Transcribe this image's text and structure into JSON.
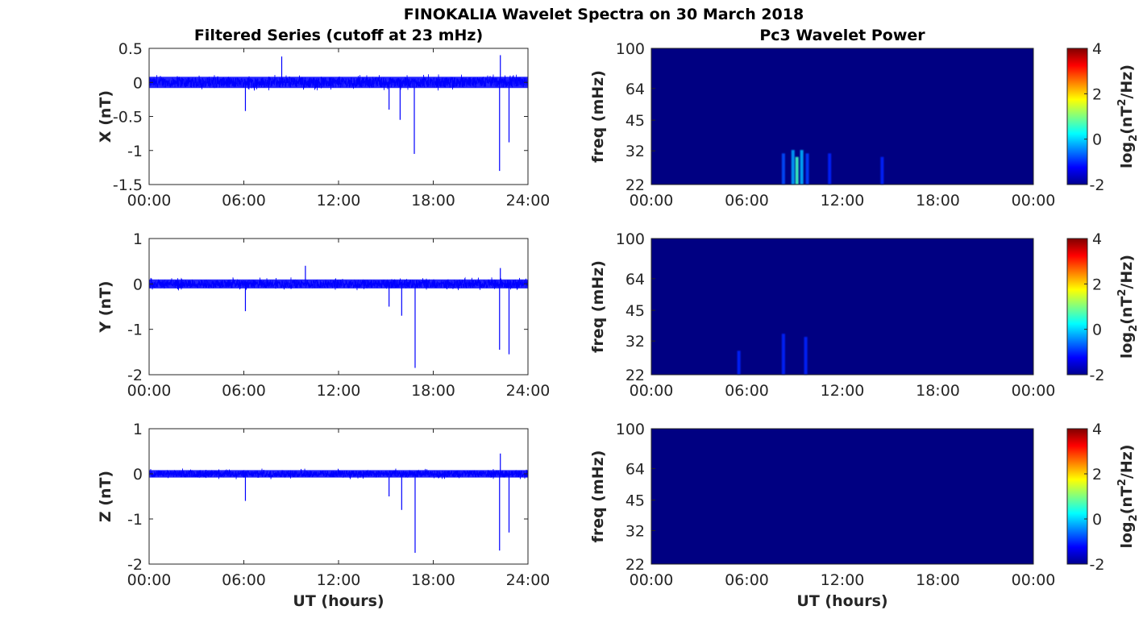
{
  "figure": {
    "title": "FINOKALIA Wavelet Spectra on 30 March 2018",
    "left_column_title": "Filtered Series (cutoff at 23 mHz)",
    "right_column_title": "Pc3 Wavelet Power",
    "xlabel": "UT (hours)"
  },
  "colors": {
    "trace": "#0000ff",
    "background_power": "#000082",
    "axis": "#262626",
    "colormap": "jet"
  },
  "chart_data": [
    {
      "type": "line",
      "component": "X",
      "ylabel": "X (nT)",
      "xlim": [
        0,
        24
      ],
      "ylim": [
        -1.5,
        0.5
      ],
      "yticks": [
        0.5,
        0,
        -0.5,
        -1,
        -1.5
      ],
      "ytick_labels": [
        "0.5",
        "0",
        "-0.5",
        "-1",
        "-1.5"
      ],
      "xticks": [
        0,
        6,
        12,
        18,
        24
      ],
      "xtick_labels": [
        "00:00",
        "06:00",
        "12:00",
        "18:00",
        "24:00"
      ],
      "noise_band": [
        -0.15,
        0.15
      ],
      "spikes": [
        {
          "x": 6.1,
          "y": -0.42
        },
        {
          "x": 8.4,
          "y": 0.38
        },
        {
          "x": 15.2,
          "y": -0.4
        },
        {
          "x": 15.9,
          "y": -0.55
        },
        {
          "x": 16.8,
          "y": -1.05
        },
        {
          "x": 22.2,
          "y": -1.3
        },
        {
          "x": 22.25,
          "y": 0.4
        },
        {
          "x": 22.8,
          "y": -0.88
        }
      ]
    },
    {
      "type": "heatmap",
      "component": "X",
      "ylabel": "freq (mHz)",
      "yscale": "log",
      "ylim": [
        22,
        100
      ],
      "yticks": [
        100,
        64,
        45,
        32,
        22
      ],
      "ytick_labels": [
        "100",
        "64",
        "45",
        "32",
        "22"
      ],
      "xlim": [
        0,
        24
      ],
      "xtick_labels": [
        "00:00",
        "06:00",
        "12:00",
        "18:00",
        "00:00"
      ],
      "colorbar": {
        "label": "log2(nT^2/Hz)",
        "range": [
          -2,
          4
        ],
        "ticks": [
          "4",
          "2",
          "0",
          "-2"
        ]
      },
      "hotspots": [
        {
          "x": 8.3,
          "f": 26,
          "level": -0.8
        },
        {
          "x": 8.9,
          "f": 27,
          "level": -0.3
        },
        {
          "x": 9.15,
          "f": 25,
          "level": 0.6
        },
        {
          "x": 9.45,
          "f": 27,
          "level": -0.2
        },
        {
          "x": 9.8,
          "f": 26,
          "level": -0.9
        },
        {
          "x": 11.2,
          "f": 26,
          "level": -1.4
        },
        {
          "x": 14.5,
          "f": 25,
          "level": -1.5
        }
      ]
    },
    {
      "type": "line",
      "component": "Y",
      "ylabel": "Y (nT)",
      "xlim": [
        0,
        24
      ],
      "ylim": [
        -2,
        1
      ],
      "yticks": [
        1,
        0,
        -1,
        -2
      ],
      "ytick_labels": [
        "1",
        "0",
        "-1",
        "-2"
      ],
      "xticks": [
        0,
        6,
        12,
        18,
        24
      ],
      "xtick_labels": [
        "00:00",
        "06:00",
        "12:00",
        "18:00",
        "24:00"
      ],
      "noise_band": [
        -0.18,
        0.18
      ],
      "spikes": [
        {
          "x": 6.1,
          "y": -0.6
        },
        {
          "x": 9.9,
          "y": 0.4
        },
        {
          "x": 15.2,
          "y": -0.5
        },
        {
          "x": 16.0,
          "y": -0.7
        },
        {
          "x": 16.85,
          "y": -1.85
        },
        {
          "x": 22.2,
          "y": -1.45
        },
        {
          "x": 22.25,
          "y": 0.35
        },
        {
          "x": 22.8,
          "y": -1.55
        }
      ]
    },
    {
      "type": "heatmap",
      "component": "Y",
      "ylabel": "freq (mHz)",
      "yscale": "log",
      "ylim": [
        22,
        100
      ],
      "yticks": [
        100,
        64,
        45,
        32,
        22
      ],
      "ytick_labels": [
        "100",
        "64",
        "45",
        "32",
        "22"
      ],
      "xlim": [
        0,
        24
      ],
      "xtick_labels": [
        "00:00",
        "06:00",
        "12:00",
        "18:00",
        "00:00"
      ],
      "colorbar": {
        "label": "log2(nT^2/Hz)",
        "range": [
          -2,
          4
        ],
        "ticks": [
          "4",
          "2",
          "0",
          "-2"
        ]
      },
      "hotspots": [
        {
          "x": 5.5,
          "f": 24,
          "level": -1.3
        },
        {
          "x": 8.3,
          "f": 29,
          "level": -1.6
        },
        {
          "x": 9.7,
          "f": 28,
          "level": -1.5
        }
      ]
    },
    {
      "type": "line",
      "component": "Z",
      "ylabel": "Z (nT)",
      "xlim": [
        0,
        24
      ],
      "ylim": [
        -2,
        1
      ],
      "yticks": [
        1,
        0,
        -1,
        -2
      ],
      "ytick_labels": [
        "1",
        "0",
        "-1",
        "-2"
      ],
      "xticks": [
        0,
        6,
        12,
        18,
        24
      ],
      "xtick_labels": [
        "00:00",
        "06:00",
        "12:00",
        "18:00",
        "24:00"
      ],
      "noise_band": [
        -0.15,
        0.15
      ],
      "spikes": [
        {
          "x": 6.1,
          "y": -0.6
        },
        {
          "x": 15.2,
          "y": -0.5
        },
        {
          "x": 16.0,
          "y": -0.8
        },
        {
          "x": 16.85,
          "y": -1.75
        },
        {
          "x": 22.2,
          "y": -1.7
        },
        {
          "x": 22.25,
          "y": 0.45
        },
        {
          "x": 22.8,
          "y": -1.3
        }
      ]
    },
    {
      "type": "heatmap",
      "component": "Z",
      "ylabel": "freq (mHz)",
      "yscale": "log",
      "ylim": [
        22,
        100
      ],
      "yticks": [
        100,
        64,
        45,
        32,
        22
      ],
      "ytick_labels": [
        "100",
        "64",
        "45",
        "32",
        "22"
      ],
      "xlim": [
        0,
        24
      ],
      "xtick_labels": [
        "00:00",
        "06:00",
        "12:00",
        "18:00",
        "00:00"
      ],
      "colorbar": {
        "label": "log2(nT^2/Hz)",
        "range": [
          -2,
          4
        ],
        "ticks": [
          "4",
          "2",
          "0",
          "-2"
        ]
      },
      "hotspots": []
    }
  ]
}
